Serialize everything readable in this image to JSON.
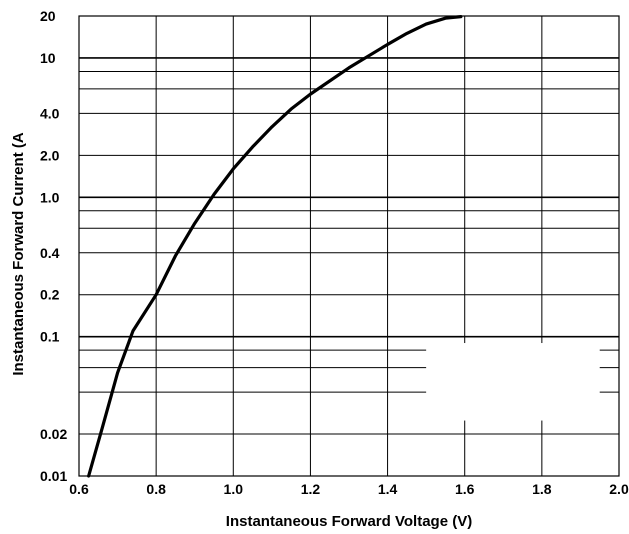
{
  "chart_data": {
    "type": "line",
    "title": "",
    "xlabel": "Instantaneous Forward Voltage (V)",
    "ylabel": "Instantaneous Forward Current (A",
    "xscale": "linear",
    "yscale": "log",
    "xlim": [
      0.6,
      2.0
    ],
    "ylim": [
      0.01,
      20
    ],
    "grid": true,
    "legend": "none",
    "x_ticks": [
      0.6,
      0.8,
      1.0,
      1.2,
      1.4,
      1.6,
      1.8,
      2.0
    ],
    "x_tick_labels": [
      "0.6",
      "0.8",
      "1.0",
      "1.2",
      "1.4",
      "1.6",
      "1.8",
      "2.0"
    ],
    "y_ticks": [
      0.01,
      0.02,
      0.1,
      0.2,
      0.4,
      1.0,
      2.0,
      4.0,
      10,
      20
    ],
    "y_tick_labels": [
      "0.01",
      "0.02",
      "0.1",
      "0.2",
      "0.4",
      "1.0",
      "2.0",
      "4.0",
      "10",
      "20"
    ],
    "y_gridlines": [
      0.02,
      0.04,
      0.06,
      0.08,
      0.1,
      0.2,
      0.4,
      0.6,
      0.8,
      1.0,
      2.0,
      4.0,
      6.0,
      8.0,
      10,
      20
    ],
    "series": [
      {
        "color": "#000000",
        "x": [
          0.625,
          0.66,
          0.7,
          0.74,
          0.8,
          0.85,
          0.9,
          0.95,
          1.0,
          1.05,
          1.1,
          1.15,
          1.2,
          1.3,
          1.4,
          1.45,
          1.5,
          1.55,
          1.59
        ],
        "y": [
          0.01,
          0.022,
          0.055,
          0.11,
          0.2,
          0.38,
          0.65,
          1.05,
          1.6,
          2.3,
          3.2,
          4.3,
          5.5,
          8.5,
          12.5,
          15,
          17.5,
          19.3,
          19.8
        ]
      }
    ]
  }
}
